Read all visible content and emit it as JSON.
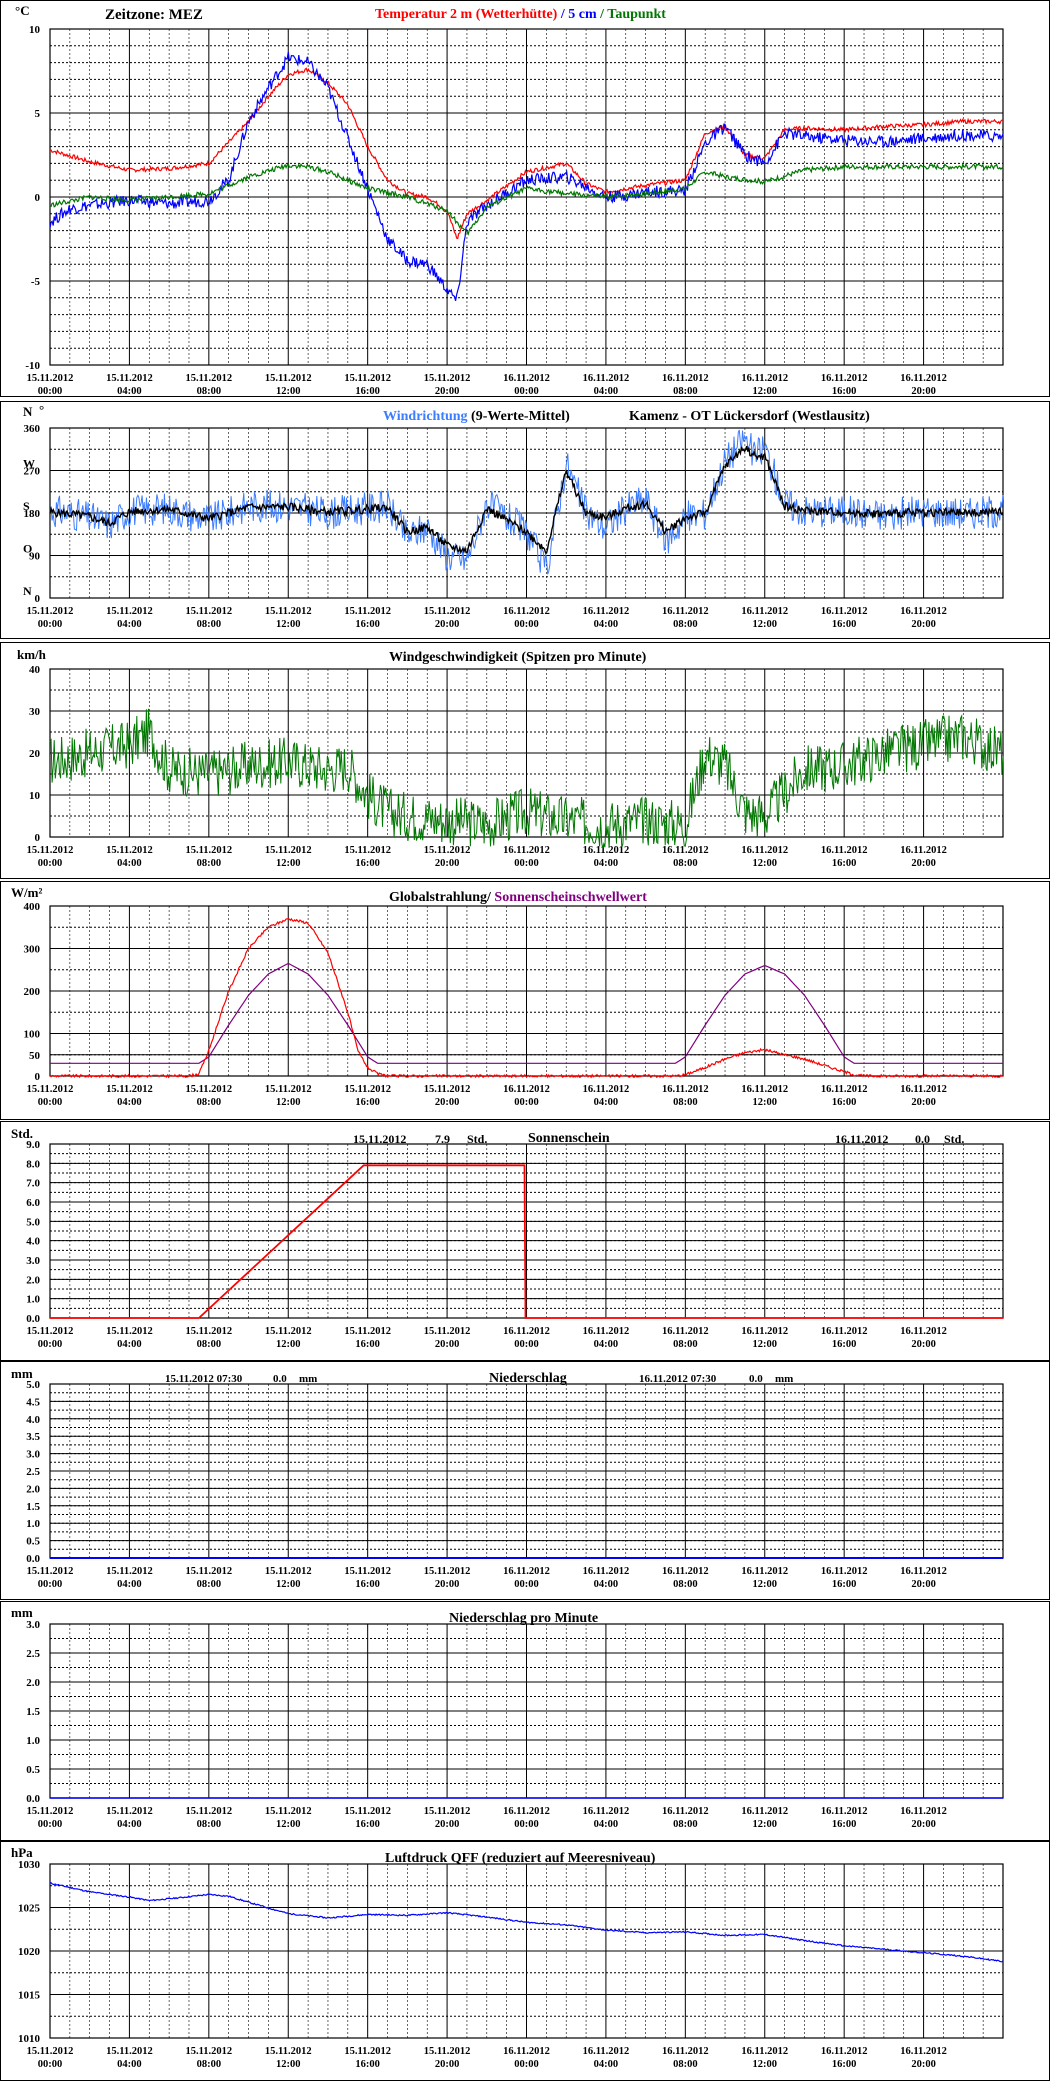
{
  "colors": {
    "red": "#ff0000",
    "blue": "#0000ff",
    "lightblue": "#3c7cff",
    "green": "#007700",
    "purple": "#800080",
    "black": "#000000"
  },
  "time_axis": {
    "dates": [
      "15.11.2012",
      "15.11.2012",
      "15.11.2012",
      "15.11.2012",
      "15.11.2012",
      "15.11.2012",
      "16.11.2012",
      "16.11.2012",
      "16.11.2012",
      "16.11.2012",
      "16.11.2012",
      "16.11.2012"
    ],
    "times": [
      "00:00",
      "04:00",
      "08:00",
      "12:00",
      "16:00",
      "20:00",
      "00:00",
      "04:00",
      "08:00",
      "12:00",
      "16:00",
      "20:00"
    ],
    "hours": [
      0,
      4,
      8,
      12,
      16,
      20,
      24,
      28,
      32,
      36,
      40,
      44
    ],
    "range_hours": [
      0,
      48
    ]
  },
  "panels": {
    "temperature": {
      "unit": "°C",
      "timezone_label": "Zeitzone: MEZ",
      "title_red": "Temperatur 2 m (Wetterhütte)",
      "title_sep": "/",
      "title_blue": "5 cm",
      "title_sep2": "/",
      "title_green": "Taupunkt",
      "yticks": [
        "10",
        "5",
        "0",
        "-5",
        "-10"
      ]
    },
    "wind_direction": {
      "unit_n": "N",
      "unit_deg": "°",
      "title_blue": "Windrichtung",
      "title_black": "(9-Werte-Mittel)",
      "station": "Kamenz - OT Lückersdorf (Westlausitz)",
      "yticks": [
        "360",
        "270",
        "180",
        "90",
        "0"
      ],
      "dir_labels": [
        "W",
        "S",
        "O",
        "N"
      ]
    },
    "wind_speed": {
      "unit": "km/h",
      "title": "Windgeschwindigkeit (Spitzen pro Minute)",
      "yticks": [
        "40",
        "30",
        "20",
        "10",
        "0"
      ]
    },
    "radiation": {
      "unit": "W/m²",
      "title_black": "Globalstrahlung/",
      "title_purple": "Sonnenscheinschwellwert",
      "yticks": [
        "400",
        "300",
        "200",
        "100",
        "50",
        "0"
      ]
    },
    "sunshine": {
      "unit": "Std.",
      "title": "Sonnenschein",
      "day1_date": "15.11.2012",
      "day1_value": "7.9",
      "day1_unit": "Std.",
      "day2_date": "16.11.2012",
      "day2_value": "0.0",
      "day2_unit": "Std.",
      "yticks": [
        "9.0",
        "8.0",
        "7.0",
        "6.0",
        "5.0",
        "4.0",
        "3.0",
        "2.0",
        "1.0",
        "0.0"
      ]
    },
    "precipitation": {
      "unit": "mm",
      "title": "Niederschlag",
      "day1_date": "15.11.2012 07:30",
      "day1_value": "0.0",
      "day1_unit": "mm",
      "day2_date": "16.11.2012 07:30",
      "day2_value": "0.0",
      "day2_unit": "mm",
      "yticks": [
        "5.0",
        "4.5",
        "4.0",
        "3.5",
        "3.0",
        "2.5",
        "2.0",
        "1.5",
        "1.0",
        "0.5",
        "0.0"
      ]
    },
    "precip_minute": {
      "unit": "mm",
      "title": "Niederschlag pro Minute",
      "yticks": [
        "3.0",
        "2.5",
        "2.0",
        "1.5",
        "1.0",
        "0.5",
        "0.0"
      ]
    },
    "pressure": {
      "unit": "hPa",
      "title": "Luftdruck QFF (reduziert auf Meeresniveau)",
      "yticks": [
        "1030",
        "1025",
        "1020",
        "1015",
        "1010"
      ]
    }
  },
  "chart_data": [
    {
      "type": "line",
      "title": "Temperatur 2 m (Wetterhütte) / 5 cm / Taupunkt",
      "ylabel": "°C",
      "ylim": [
        -10,
        10
      ],
      "x_unit": "hours since 15.11.2012 00:00",
      "series": [
        {
          "name": "Temperatur 2 m (Wetterhütte)",
          "color": "#ff0000",
          "x": [
            0,
            2,
            4,
            6,
            8,
            10,
            11,
            12,
            13,
            14,
            15,
            16,
            17,
            18,
            19,
            20,
            20.5,
            21,
            22,
            24,
            26,
            27,
            28,
            29,
            30,
            32,
            33,
            34,
            35,
            36,
            37,
            38,
            40,
            42,
            44,
            46,
            48
          ],
          "y": [
            2.8,
            2.1,
            1.6,
            1.7,
            2.0,
            4.5,
            6.0,
            7.3,
            7.6,
            6.8,
            5.5,
            3.0,
            1.0,
            0.2,
            0.0,
            -0.8,
            -2.5,
            -1.0,
            -0.2,
            1.5,
            2.0,
            0.8,
            0.3,
            0.5,
            0.7,
            1.0,
            3.8,
            4.2,
            2.5,
            2.3,
            4.0,
            4.1,
            4.0,
            4.2,
            4.3,
            4.5,
            4.5
          ]
        },
        {
          "name": "5 cm",
          "color": "#0000ff",
          "x": [
            0,
            1,
            2,
            4,
            6,
            8,
            9,
            10,
            11,
            12,
            13,
            14,
            15,
            16,
            17,
            18,
            19,
            20,
            20.5,
            21,
            22,
            24,
            26,
            27,
            28,
            29,
            30,
            32,
            33,
            34,
            35,
            36,
            37,
            38,
            40,
            42,
            44,
            46,
            48
          ],
          "y": [
            -1.5,
            -0.7,
            -0.5,
            -0.2,
            -0.4,
            -0.2,
            1.0,
            4.5,
            6.5,
            8.3,
            8.0,
            6.5,
            3.5,
            0.5,
            -2.5,
            -3.8,
            -4.0,
            -5.5,
            -6.2,
            -1.5,
            -0.5,
            1.0,
            1.2,
            0.6,
            0.0,
            0.1,
            0.3,
            0.4,
            3.2,
            4.2,
            2.5,
            2.0,
            3.8,
            3.6,
            3.4,
            3.3,
            3.5,
            3.7,
            3.6
          ]
        },
        {
          "name": "Taupunkt",
          "color": "#007700",
          "x": [
            0,
            2,
            4,
            6,
            8,
            10,
            12,
            13,
            14,
            16,
            18,
            20,
            21,
            22,
            24,
            26,
            28,
            30,
            32,
            33,
            34,
            36,
            38,
            40,
            42,
            44,
            46,
            48
          ],
          "y": [
            -0.5,
            0.0,
            -0.2,
            0.0,
            0.2,
            1.2,
            1.9,
            1.8,
            1.5,
            0.5,
            0.0,
            -0.8,
            -2.2,
            -0.6,
            0.5,
            0.2,
            0.0,
            0.2,
            0.5,
            1.5,
            1.2,
            0.9,
            1.6,
            1.8,
            1.8,
            1.8,
            1.8,
            1.8
          ]
        }
      ]
    },
    {
      "type": "scatter",
      "title": "Windrichtung (9-Werte-Mittel)",
      "ylabel": "°",
      "ylim": [
        0,
        360
      ],
      "series": [
        {
          "name": "Windrichtung",
          "color": "#3c7cff",
          "x": [
            0,
            1,
            2,
            3,
            4,
            6,
            8,
            10,
            12,
            14,
            16,
            17,
            18,
            19,
            20,
            21,
            22,
            24,
            25,
            26,
            27,
            28,
            29,
            30,
            31,
            32,
            33,
            34,
            35,
            35.5,
            36,
            37,
            38,
            40,
            42,
            44,
            46,
            48
          ],
          "y": [
            185,
            180,
            170,
            155,
            185,
            190,
            165,
            195,
            195,
            180,
            190,
            195,
            130,
            150,
            90,
            80,
            200,
            140,
            60,
            285,
            180,
            150,
            190,
            210,
            120,
            170,
            180,
            290,
            340,
            300,
            320,
            200,
            185,
            185,
            175,
            185,
            180,
            185
          ]
        },
        {
          "name": "(9-Werte-Mittel)",
          "color": "#000000",
          "x": [
            0,
            1,
            2,
            3,
            4,
            6,
            8,
            10,
            12,
            14,
            16,
            17,
            18,
            19,
            20,
            21,
            22,
            24,
            25,
            26,
            27,
            28,
            29,
            30,
            31,
            32,
            33,
            34,
            35,
            35.5,
            36,
            37,
            38,
            40,
            42,
            44,
            46,
            48
          ],
          "y": [
            182,
            178,
            172,
            158,
            183,
            188,
            168,
            192,
            193,
            182,
            188,
            192,
            140,
            150,
            110,
            100,
            190,
            140,
            100,
            270,
            180,
            170,
            190,
            200,
            140,
            170,
            180,
            280,
            320,
            300,
            300,
            195,
            185,
            182,
            178,
            182,
            180,
            183
          ]
        }
      ]
    },
    {
      "type": "line",
      "title": "Windgeschwindigkeit (Spitzen pro Minute)",
      "ylabel": "km/h",
      "ylim": [
        0,
        40
      ],
      "series": [
        {
          "name": "Windgeschwindigkeit",
          "color": "#007700",
          "x": [
            0,
            2,
            4,
            5,
            6,
            8,
            10,
            12,
            14,
            15,
            16,
            17,
            18,
            20,
            22,
            24,
            26,
            28,
            30,
            32,
            33,
            34,
            35,
            36,
            38,
            40,
            42,
            44,
            46,
            48
          ],
          "y": [
            18,
            20,
            22,
            25,
            16,
            15,
            17,
            18,
            16,
            17,
            10,
            6,
            5,
            4,
            3,
            6,
            4,
            3,
            4,
            3,
            20,
            17,
            6,
            5,
            16,
            17,
            20,
            22,
            24,
            20
          ]
        }
      ]
    },
    {
      "type": "line",
      "title": "Globalstrahlung/ Sonnenscheinschwellwert",
      "ylabel": "W/m²",
      "ylim": [
        0,
        400
      ],
      "series": [
        {
          "name": "Globalstrahlung",
          "color": "#ff0000",
          "x": [
            0,
            7,
            7.5,
            8,
            9,
            10,
            11,
            12,
            13,
            14,
            15,
            15.5,
            16,
            16.5,
            17,
            31.5,
            32,
            33,
            34,
            35,
            36,
            37,
            38,
            39,
            40,
            40.5,
            41,
            48
          ],
          "y": [
            0,
            0,
            5,
            60,
            200,
            300,
            350,
            370,
            360,
            290,
            150,
            60,
            20,
            5,
            0,
            0,
            3,
            20,
            40,
            55,
            62,
            50,
            40,
            25,
            10,
            3,
            0,
            0
          ]
        },
        {
          "name": "Sonnenscheinschwellwert",
          "color": "#800080",
          "x": [
            0,
            7.5,
            8,
            9,
            10,
            11,
            12,
            13,
            14,
            15,
            16,
            16.5,
            31.5,
            32,
            33,
            34,
            35,
            36,
            37,
            38,
            39,
            40,
            40.5,
            48
          ],
          "y": [
            30,
            30,
            45,
            120,
            190,
            240,
            265,
            240,
            190,
            120,
            45,
            30,
            30,
            45,
            120,
            190,
            240,
            260,
            240,
            190,
            120,
            45,
            30,
            30
          ]
        }
      ]
    },
    {
      "type": "line",
      "title": "Sonnenschein",
      "ylabel": "Std.",
      "ylim": [
        0,
        9
      ],
      "series": [
        {
          "name": "Sonnenschein",
          "color": "#ff0000",
          "x": [
            0,
            7.5,
            15.8,
            23.9,
            23.95,
            48
          ],
          "y": [
            0,
            0,
            7.9,
            7.9,
            0,
            0
          ]
        }
      ]
    },
    {
      "type": "line",
      "title": "Niederschlag",
      "ylabel": "mm",
      "ylim": [
        0,
        5
      ],
      "series": [
        {
          "name": "Niederschlag",
          "color": "#0000ff",
          "x": [
            0,
            48
          ],
          "y": [
            0,
            0
          ]
        }
      ]
    },
    {
      "type": "line",
      "title": "Niederschlag pro Minute",
      "ylabel": "mm",
      "ylim": [
        0,
        3
      ],
      "series": [
        {
          "name": "Niederschlag pro Minute",
          "color": "#0000ff",
          "x": [
            0,
            48
          ],
          "y": [
            0,
            0
          ]
        }
      ]
    },
    {
      "type": "line",
      "title": "Luftdruck QFF (reduziert auf Meeresniveau)",
      "ylabel": "hPa",
      "ylim": [
        1010,
        1030
      ],
      "series": [
        {
          "name": "Luftdruck QFF",
          "color": "#0000ff",
          "x": [
            0,
            2,
            4,
            5,
            6,
            8,
            9,
            10,
            12,
            14,
            16,
            18,
            20,
            22,
            24,
            26,
            28,
            30,
            32,
            34,
            36,
            38,
            40,
            42,
            44,
            46,
            48
          ],
          "y": [
            1027.8,
            1026.8,
            1026.2,
            1025.8,
            1026.0,
            1026.5,
            1026.3,
            1025.6,
            1024.3,
            1023.8,
            1024.2,
            1024.1,
            1024.4,
            1023.9,
            1023.3,
            1023.0,
            1022.4,
            1022.1,
            1022.2,
            1021.8,
            1021.9,
            1021.2,
            1020.6,
            1020.2,
            1019.8,
            1019.4,
            1018.8
          ]
        }
      ]
    }
  ]
}
